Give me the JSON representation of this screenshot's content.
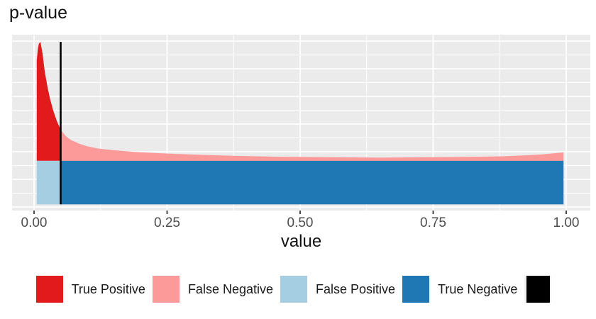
{
  "title": "p-value",
  "chart_data": {
    "type": "area",
    "title": "p-value",
    "xlabel": "value",
    "ylabel": "",
    "x_tick_labels": [
      "0.00",
      "0.25",
      "0.50",
      "0.75",
      "1.00"
    ],
    "x_tick_values": [
      0,
      0.25,
      0.5,
      0.75,
      1
    ],
    "x_minor_tick_values": [
      0.125,
      0.375,
      0.625,
      0.875
    ],
    "xlim": [
      -0.041,
      1.046
    ],
    "x_data_range": [
      0.005,
      0.995
    ],
    "threshold_value": 0.05,
    "null_band_density": 1.0,
    "curve_x": [
      0.005,
      0.007,
      0.009,
      0.012,
      0.016,
      0.02,
      0.025,
      0.03,
      0.036,
      0.043,
      0.05,
      0.06,
      0.07,
      0.085,
      0.1,
      0.12,
      0.15,
      0.19,
      0.24,
      0.3,
      0.38,
      0.47,
      0.56,
      0.65,
      0.74,
      0.82,
      0.88,
      0.92,
      0.95,
      0.97,
      0.985,
      0.995
    ],
    "curve_total_density": [
      3.3,
      3.55,
      3.68,
      3.72,
      3.45,
      3.05,
      2.7,
      2.42,
      2.15,
      1.9,
      1.71,
      1.56,
      1.47,
      1.39,
      1.33,
      1.28,
      1.24,
      1.2,
      1.17,
      1.14,
      1.11,
      1.09,
      1.08,
      1.07,
      1.08,
      1.09,
      1.1,
      1.12,
      1.14,
      1.16,
      1.18,
      1.19
    ],
    "regions": [
      {
        "name": "True Positive",
        "color": "#E31A1C",
        "where": "density above null band, x < threshold"
      },
      {
        "name": "False Negative",
        "color": "#FB9A99",
        "where": "density above null band, x > threshold"
      },
      {
        "name": "False Positive",
        "color": "#A6CEE3",
        "where": "null band, x < threshold"
      },
      {
        "name": "True Negative",
        "color": "#1F78B4",
        "where": "null band, x > threshold"
      },
      {
        "name": "threshold line",
        "color": "#000000",
        "where": "vertical line at x = 0.05"
      }
    ],
    "legend_position": "bottom",
    "grid": "on",
    "panel_background": "#EBEBEB",
    "gridline_color": "#FFFFFF"
  },
  "legend": {
    "items": [
      {
        "label": "True Positive",
        "color": "#E31A1C",
        "type": "fill"
      },
      {
        "label": "False Negative",
        "color": "#FB9A99",
        "type": "fill"
      },
      {
        "label": "False Positive",
        "color": "#A6CEE3",
        "type": "fill"
      },
      {
        "label": "True Negative",
        "color": "#1F78B4",
        "type": "fill"
      },
      {
        "label": "",
        "color": "#000000",
        "type": "line"
      }
    ]
  },
  "colors": {
    "tick_label": "#4D4D4D",
    "text": "#1A1A1A"
  }
}
